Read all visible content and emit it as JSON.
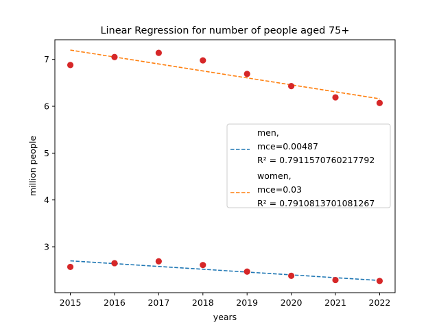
{
  "chart_data": {
    "type": "scatter",
    "title": "Linear Regression for number of people aged 75+",
    "xlabel": "years",
    "ylabel": "million people",
    "xlim": [
      2014.65,
      2022.35
    ],
    "ylim": [
      2.02,
      7.42
    ],
    "xticks": [
      2015,
      2016,
      2017,
      2018,
      2019,
      2020,
      2021,
      2022
    ],
    "yticks": [
      3,
      4,
      5,
      6,
      7
    ],
    "grid": false,
    "legend_position": "center-right",
    "points_color": "#d62728",
    "points": {
      "men": [
        {
          "x": 2015,
          "y": 2.57
        },
        {
          "x": 2016,
          "y": 2.65
        },
        {
          "x": 2017,
          "y": 2.69
        },
        {
          "x": 2018,
          "y": 2.61
        },
        {
          "x": 2019,
          "y": 2.47
        },
        {
          "x": 2020,
          "y": 2.38
        },
        {
          "x": 2021,
          "y": 2.29
        },
        {
          "x": 2022,
          "y": 2.27
        }
      ],
      "women": [
        {
          "x": 2015,
          "y": 6.88
        },
        {
          "x": 2016,
          "y": 7.05
        },
        {
          "x": 2017,
          "y": 7.14
        },
        {
          "x": 2018,
          "y": 6.98
        },
        {
          "x": 2019,
          "y": 6.69
        },
        {
          "x": 2020,
          "y": 6.43
        },
        {
          "x": 2021,
          "y": 6.19
        },
        {
          "x": 2022,
          "y": 6.07
        }
      ]
    },
    "series": [
      {
        "name": "men",
        "color": "#1f77b4",
        "style": "dashed",
        "fit": {
          "x": [
            2015,
            2022
          ],
          "y": [
            2.7,
            2.28
          ]
        },
        "legend_lines": [
          "men,",
          "mce=0.00487",
          "R² = 0.7911570760217792"
        ]
      },
      {
        "name": "women",
        "color": "#ff7f0e",
        "style": "dashed",
        "fit": {
          "x": [
            2015,
            2022
          ],
          "y": [
            7.2,
            6.16
          ]
        },
        "legend_lines": [
          "women,",
          "mce=0.03",
          "R² = 0.7910813701081267"
        ]
      }
    ]
  }
}
